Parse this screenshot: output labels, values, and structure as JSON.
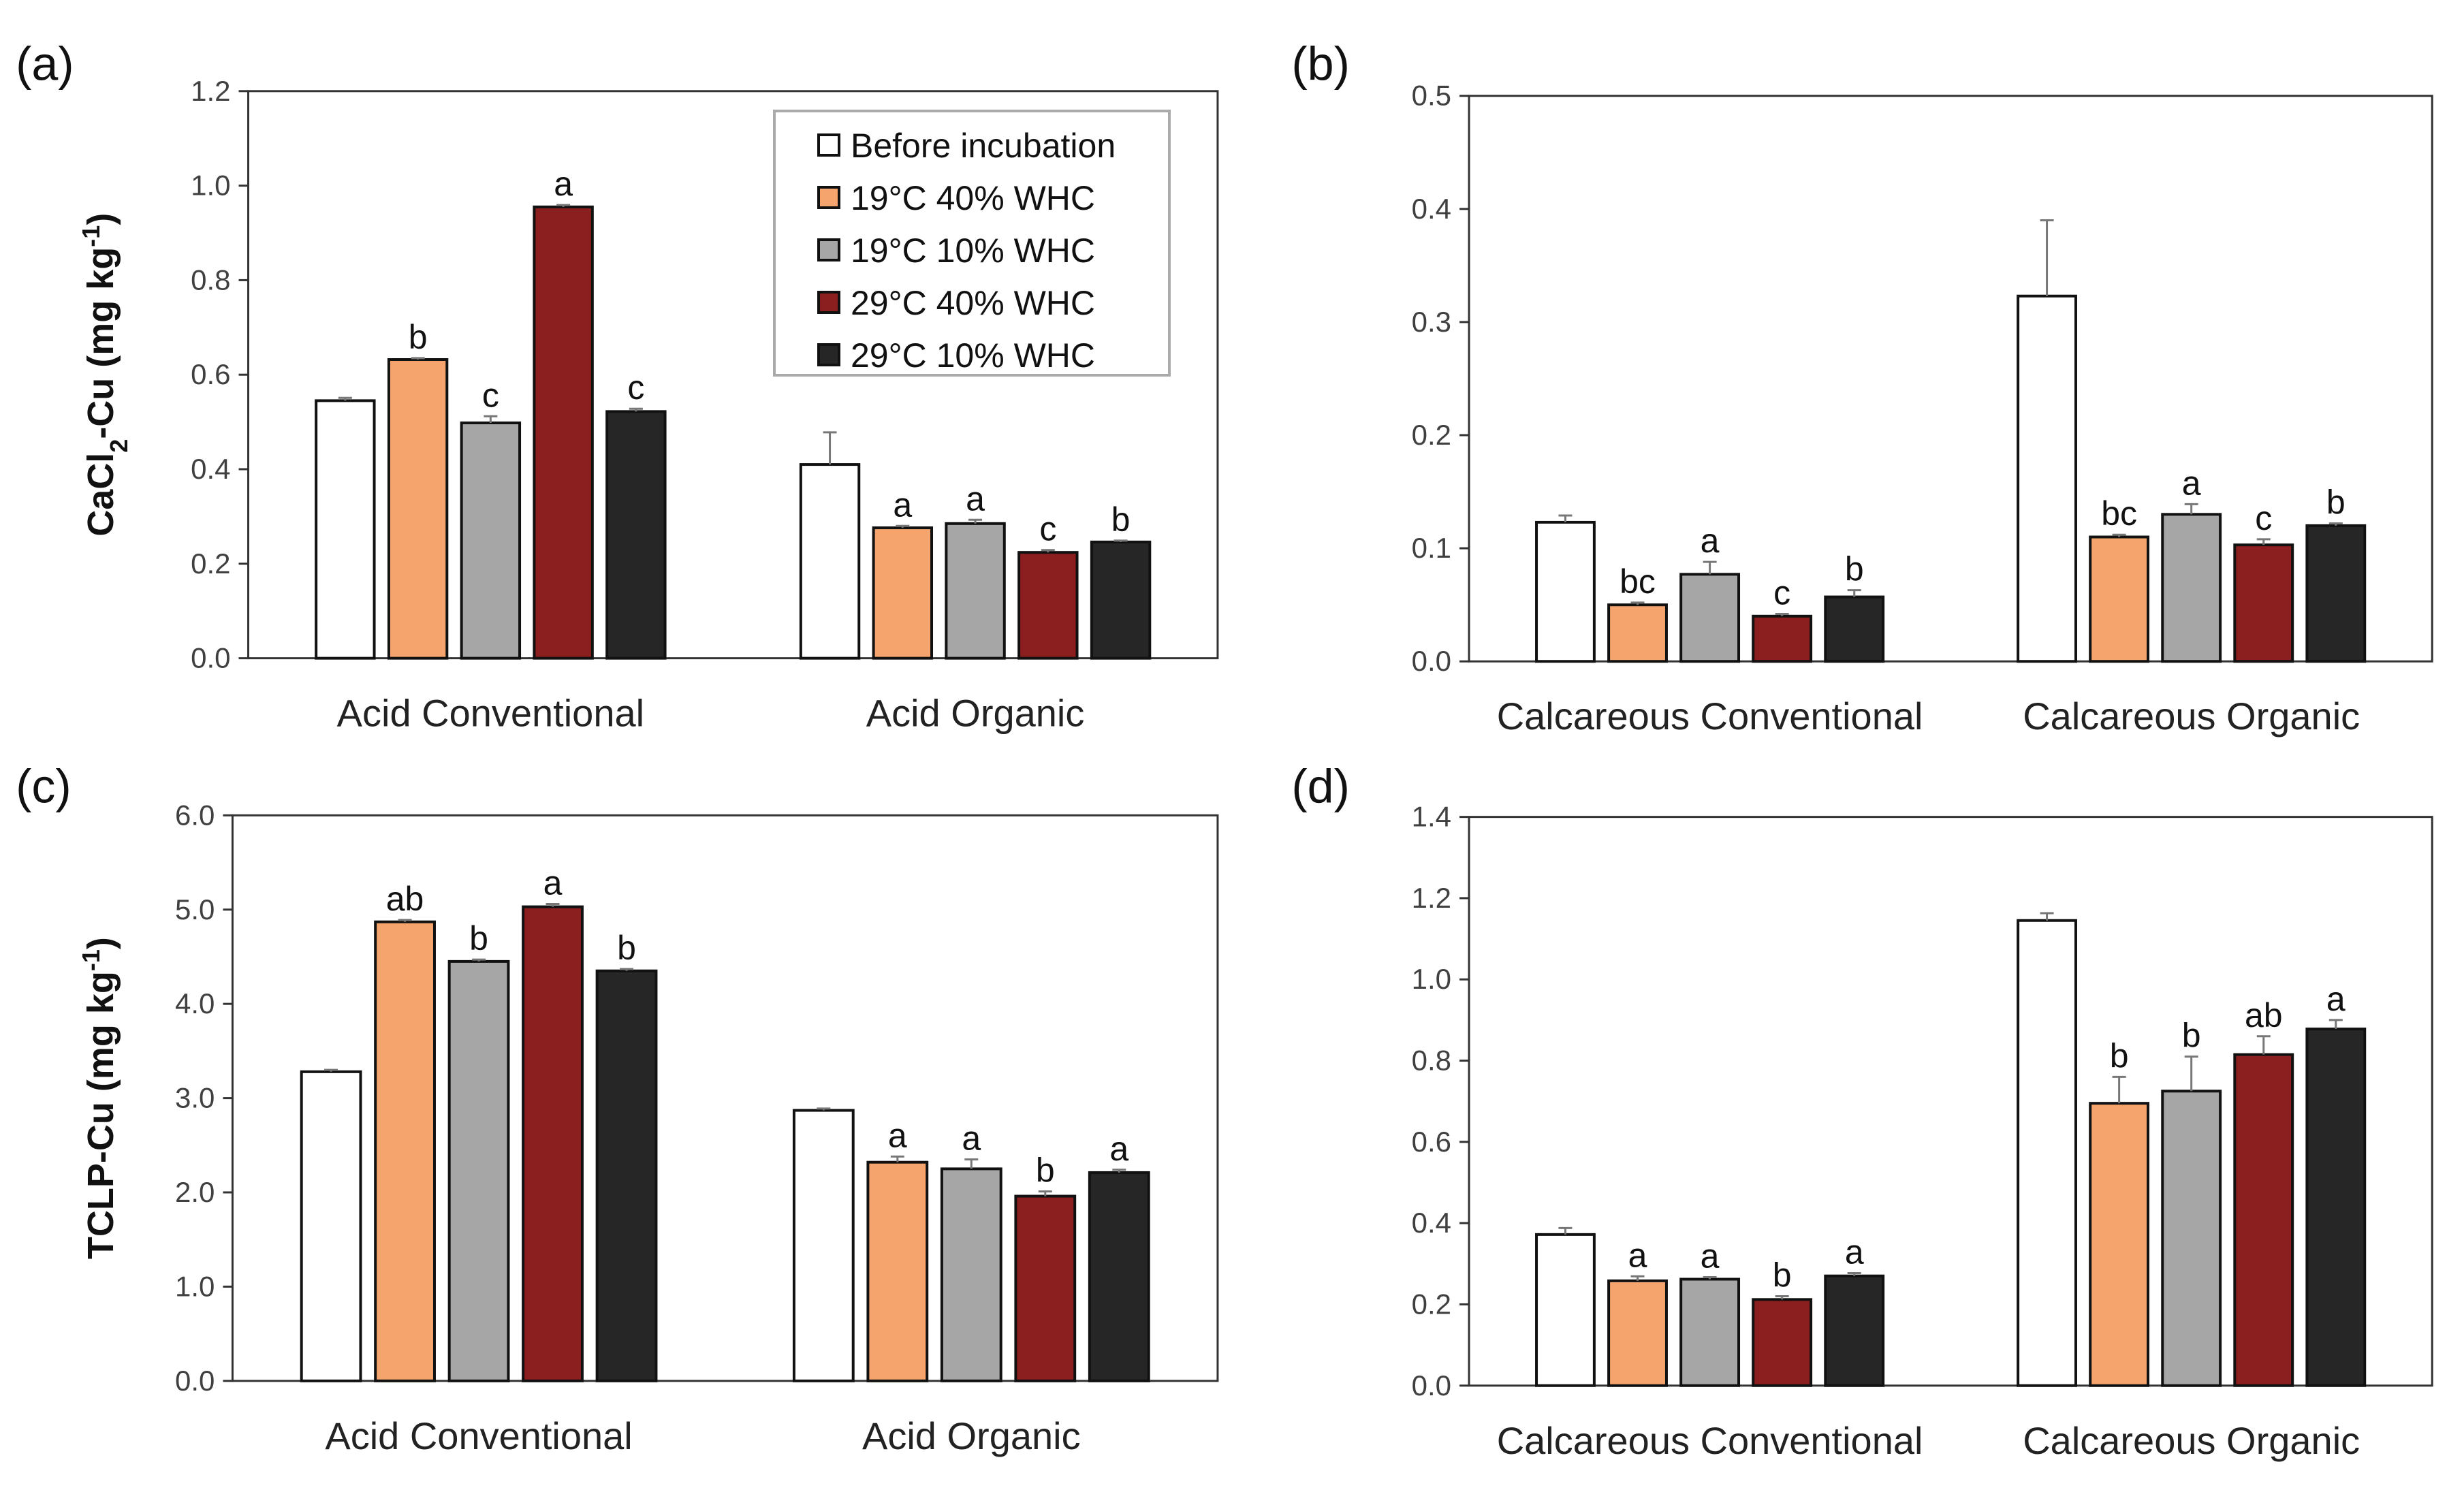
{
  "legend": [
    "Before incubation",
    "19°C 40% WHC",
    "19°C 10% WHC",
    "29°C 40% WHC",
    "29°C 10% WHC"
  ],
  "colors": [
    "#FFFFFF",
    "#F4A46C",
    "#A6A6A6",
    "#8B1E1E",
    "#262626"
  ],
  "chart_data": [
    {
      "type": "bar",
      "panel": "(a)",
      "ylabel_parts": [
        "CaCl",
        "2",
        "-Cu (mg kg",
        "-1",
        ")"
      ],
      "ylim": [
        0,
        1.2
      ],
      "yticks": [
        "0.0",
        "0.2",
        "0.4",
        "0.6",
        "0.8",
        "1.0",
        "1.2"
      ],
      "categories": [
        "Acid Conventional",
        "Acid Organic"
      ],
      "values": [
        [
          0.545,
          0.632,
          0.498,
          0.955,
          0.522
        ],
        [
          0.41,
          0.276,
          0.285,
          0.224,
          0.246
        ]
      ],
      "errors": [
        [
          0.006,
          0.003,
          0.014,
          0.004,
          0.006
        ],
        [
          0.068,
          0.004,
          0.008,
          0.005,
          0.003
        ]
      ],
      "letters": [
        [
          "",
          "b",
          "c",
          "a",
          "c"
        ],
        [
          "",
          "a",
          "a",
          "c",
          "b"
        ]
      ],
      "legend_shown": "top-right"
    },
    {
      "type": "bar",
      "panel": "(b)",
      "ylabel_parts": [],
      "ylim": [
        0,
        0.5
      ],
      "yticks": [
        "0.0",
        "0.1",
        "0.2",
        "0.3",
        "0.4",
        "0.5"
      ],
      "categories": [
        "Calcareous Conventional",
        "Calcareous Organic"
      ],
      "values": [
        [
          0.123,
          0.05,
          0.077,
          0.04,
          0.057
        ],
        [
          0.323,
          0.11,
          0.13,
          0.103,
          0.12
        ]
      ],
      "errors": [
        [
          0.006,
          0.002,
          0.011,
          0.002,
          0.006
        ],
        [
          0.067,
          0.002,
          0.009,
          0.005,
          0.002
        ]
      ],
      "letters": [
        [
          "",
          "bc",
          "a",
          "c",
          "b"
        ],
        [
          "",
          "bc",
          "a",
          "c",
          "b"
        ]
      ]
    },
    {
      "type": "bar",
      "panel": "(c)",
      "ylabel_parts": [
        "TCLP-Cu (mg kg",
        "-1",
        ")"
      ],
      "ylim": [
        0,
        6
      ],
      "yticks": [
        "0.0",
        "1.0",
        "2.0",
        "3.0",
        "4.0",
        "5.0",
        "6.0"
      ],
      "categories": [
        "Acid Conventional",
        "Acid Organic"
      ],
      "values": [
        [
          3.28,
          4.87,
          4.45,
          5.03,
          4.35
        ],
        [
          2.87,
          2.32,
          2.25,
          1.96,
          2.21
        ]
      ],
      "errors": [
        [
          0.02,
          0.02,
          0.02,
          0.03,
          0.02
        ],
        [
          0.02,
          0.06,
          0.1,
          0.05,
          0.03
        ]
      ],
      "letters": [
        [
          "",
          "ab",
          "b",
          "a",
          "b"
        ],
        [
          "",
          "a",
          "a",
          "b",
          "a"
        ]
      ]
    },
    {
      "type": "bar",
      "panel": "(d)",
      "ylabel_parts": [],
      "ylim": [
        0,
        1.4
      ],
      "yticks": [
        "0.0",
        "0.2",
        "0.4",
        "0.6",
        "0.8",
        "1.0",
        "1.2",
        "1.4"
      ],
      "categories": [
        "Calcareous Conventional",
        "Calcareous Organic"
      ],
      "values": [
        [
          0.372,
          0.258,
          0.262,
          0.212,
          0.27
        ],
        [
          1.145,
          0.695,
          0.725,
          0.815,
          0.878
        ]
      ],
      "errors": [
        [
          0.016,
          0.011,
          0.005,
          0.008,
          0.007
        ],
        [
          0.018,
          0.065,
          0.085,
          0.045,
          0.022
        ]
      ],
      "letters": [
        [
          "",
          "a",
          "a",
          "b",
          "a"
        ],
        [
          "",
          "b",
          "b",
          "ab",
          "a"
        ]
      ]
    }
  ]
}
